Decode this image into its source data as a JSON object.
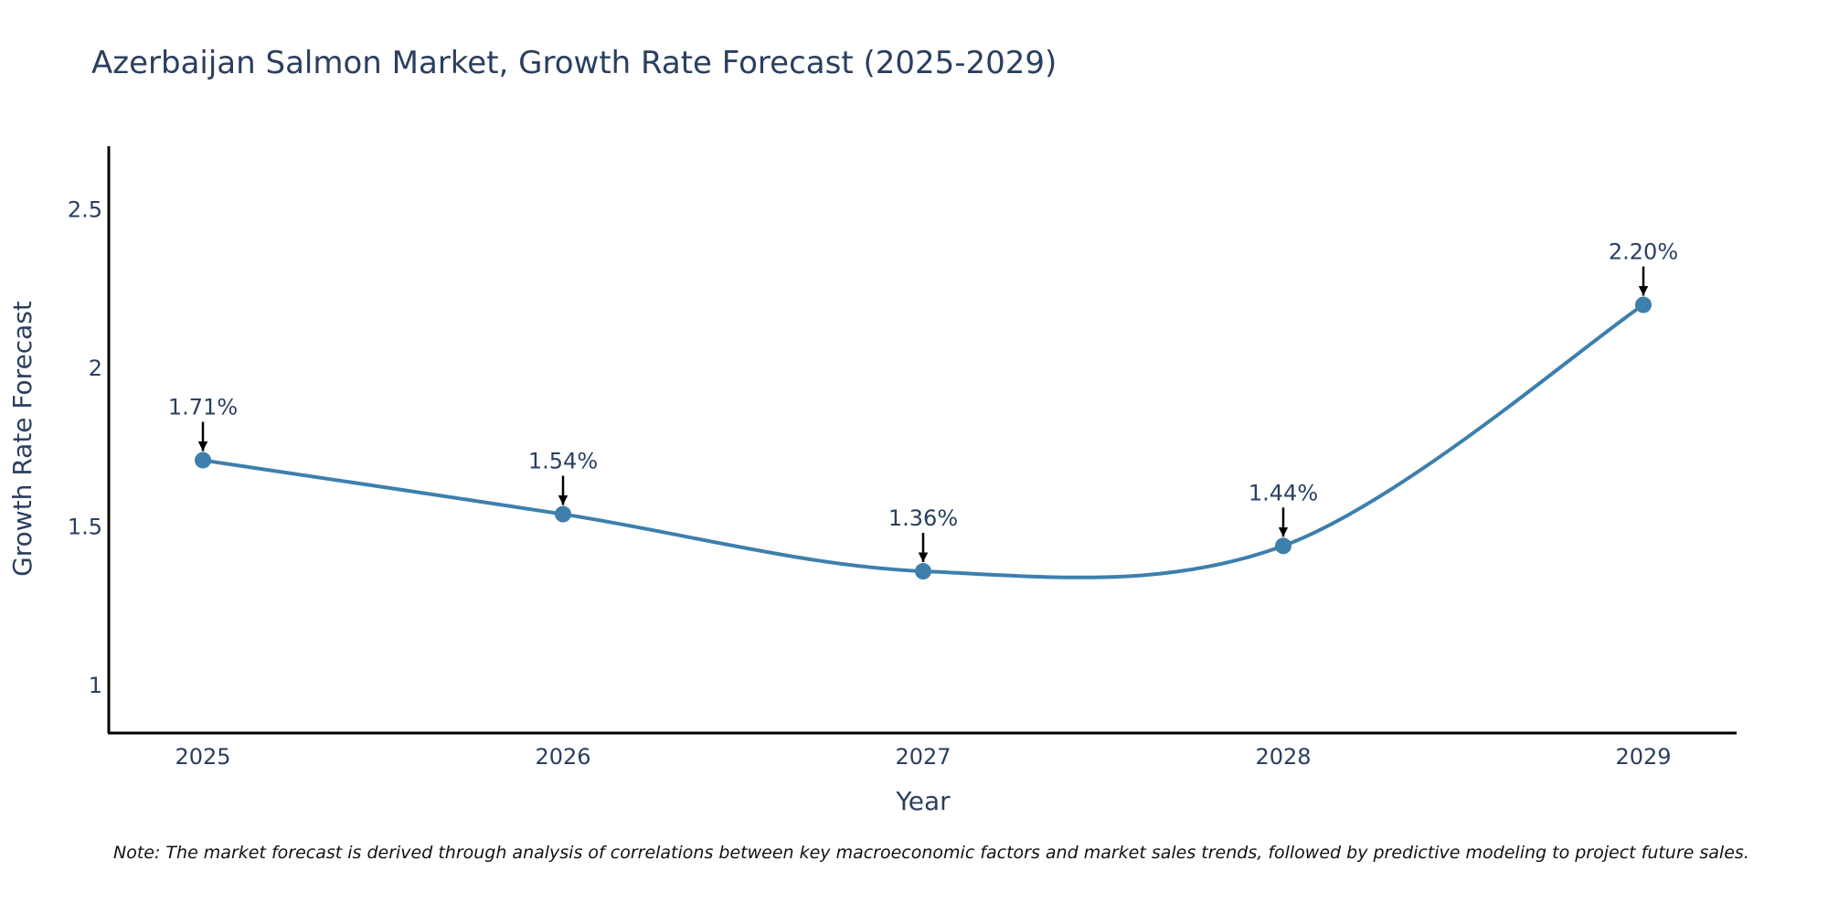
{
  "chart_data": {
    "type": "line",
    "title": "Azerbaijan Salmon Market, Growth Rate Forecast (2025-2029)",
    "xlabel": "Year",
    "ylabel": "Growth Rate Forecast",
    "categories": [
      "2025",
      "2026",
      "2027",
      "2028",
      "2029"
    ],
    "series": [
      {
        "name": "Growth Rate Forecast",
        "values": [
          1.71,
          1.54,
          1.36,
          1.44,
          2.2
        ]
      }
    ],
    "data_labels": [
      "1.71%",
      "1.54%",
      "1.36%",
      "1.44%",
      "2.20%"
    ],
    "y_ticks": [
      1,
      1.5,
      2,
      2.5
    ],
    "y_tick_labels": [
      "1",
      "1.5",
      "2",
      "2.5"
    ],
    "ylim": [
      0.85,
      2.7
    ],
    "grid": false,
    "line_shape": "spline",
    "colors": {
      "line": "#3d7fad",
      "marker": "#3d7fad",
      "arrow": "#000000",
      "text": "#2a3f5f",
      "axis": "#000000"
    }
  },
  "note": "Note: The market forecast is derived through analysis of correlations between key macroeconomic factors and market sales trends, followed by predictive modeling to project future sales."
}
